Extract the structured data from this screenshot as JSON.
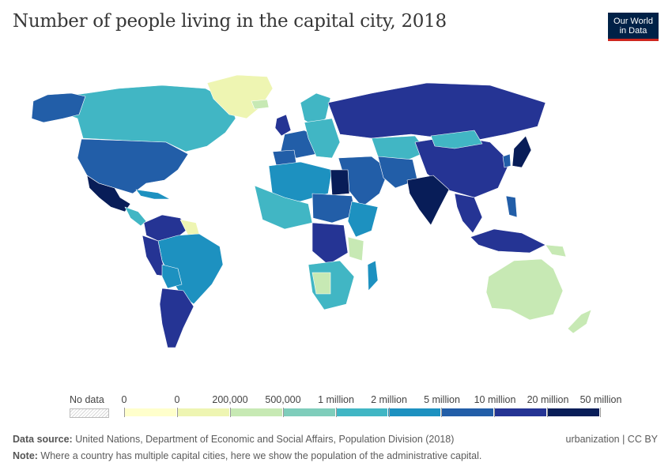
{
  "header": {
    "title": "Number of people living in the capital city, 2018",
    "logo_line1": "Our World",
    "logo_line2": "in Data"
  },
  "legend": {
    "no_data_label": "No data",
    "bins": [
      {
        "label": "0",
        "color": "#ffffcc"
      },
      {
        "label": "0",
        "color": "#eef5b2"
      },
      {
        "label": "200,000",
        "color": "#c7e9b4"
      },
      {
        "label": "500,000",
        "color": "#7fcdbb"
      },
      {
        "label": "1 million",
        "color": "#41b6c4"
      },
      {
        "label": "2 million",
        "color": "#1d91c0"
      },
      {
        "label": "5 million",
        "color": "#225ea8"
      },
      {
        "label": "10 million",
        "color": "#253494"
      },
      {
        "label": "20 million",
        "color": "#081d58"
      },
      {
        "label": "50 million",
        "color": null
      }
    ]
  },
  "footer": {
    "source_label": "Data source:",
    "source_text": " United Nations, Department of Economic and Social Affairs, Population Division (2018)",
    "note_label": "Note:",
    "note_text": " Where a country has multiple capital cities, here we show the population of the administrative capital.",
    "right_text": "urbanization | CC BY"
  }
}
